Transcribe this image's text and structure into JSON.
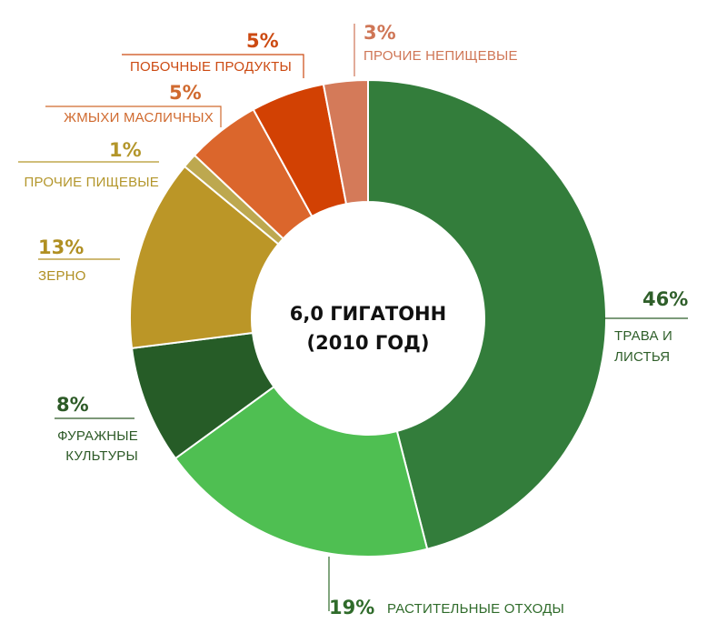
{
  "chart_data": {
    "type": "pie",
    "center_text": [
      "6,0 ГИГАТОНН",
      "(2010 ГОД)"
    ],
    "slices": [
      {
        "name": "ТРАВА И ЛИСТЬЯ",
        "lines": [
          "ТРАВА И",
          "ЛИСТЬЯ"
        ],
        "value": 46,
        "label": "46%",
        "color": "#337d3b",
        "label_color": "#2f5f2a"
      },
      {
        "name": "РАСТИТЕЛЬНЫЕ ОТХОДЫ",
        "lines": [
          "РАСТИТЕЛЬНЫЕ ОТХОДЫ"
        ],
        "value": 19,
        "label": "19%",
        "color": "#4fbf52",
        "label_color": "#2f6b2a"
      },
      {
        "name": "ФУРАЖНЫЕ КУЛЬТУРЫ",
        "lines": [
          "ФУРАЖНЫЕ",
          "КУЛЬТУРЫ"
        ],
        "value": 8,
        "label": "8%",
        "color": "#265c27",
        "label_color": "#2d5a27"
      },
      {
        "name": "ЗЕРНО",
        "lines": [
          "ЗЕРНО"
        ],
        "value": 13,
        "label": "13%",
        "color": "#bb9627",
        "label_color": "#b08f22"
      },
      {
        "name": "ПРОЧИЕ ПИЩЕВЫЕ",
        "lines": [
          "ПРОЧИЕ ПИЩЕВЫЕ"
        ],
        "value": 1,
        "label": "1%",
        "color": "#bda84f",
        "label_color": "#b3962b"
      },
      {
        "name": "ЖМЫХИ МАСЛИЧНЫХ",
        "lines": [
          "ЖМЫХИ МАСЛИЧНЫХ"
        ],
        "value": 5,
        "label": "5%",
        "color": "#db662c",
        "label_color": "#d06a2f"
      },
      {
        "name": "ПОБОЧНЫЕ ПРОДУКТЫ",
        "lines": [
          "ПОБОЧНЫЕ ПРОДУКТЫ"
        ],
        "value": 5,
        "label": "5%",
        "color": "#d24103",
        "label_color": "#cc4a12"
      },
      {
        "name": "ПРОЧИЕ НЕПИЩЕВЫЕ",
        "lines": [
          "ПРОЧИЕ НЕПИЩЕВЫЕ"
        ],
        "value": 3,
        "label": "3%",
        "color": "#d47a59",
        "label_color": "#cf7656"
      }
    ]
  }
}
